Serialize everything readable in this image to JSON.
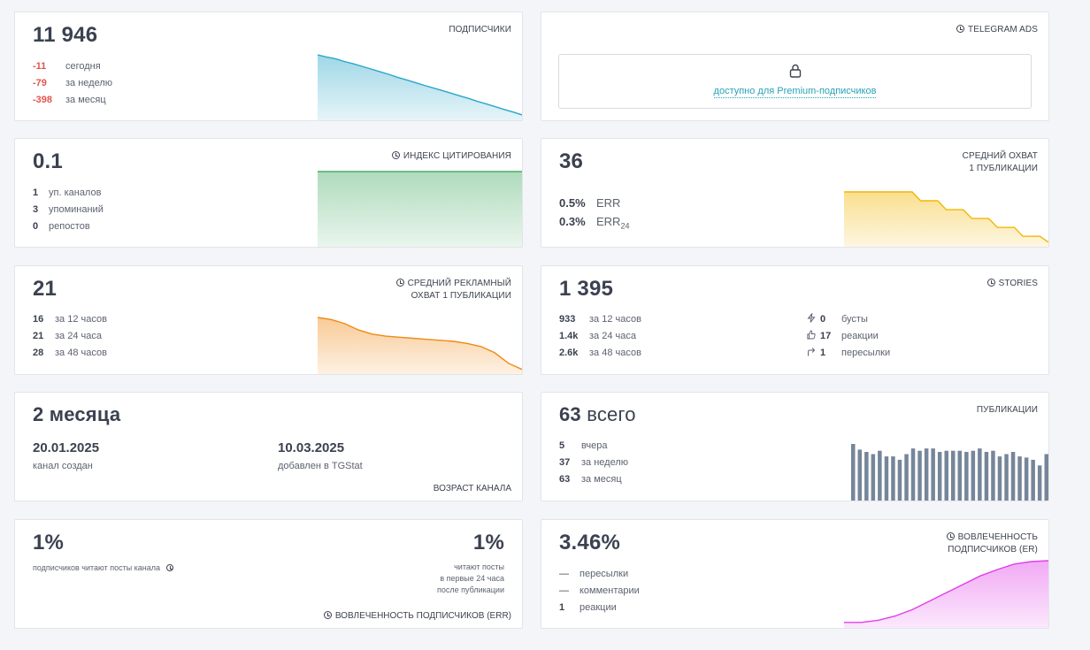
{
  "subscribers": {
    "value": "11 946",
    "label": "ПОДПИСЧИКИ",
    "stats": [
      {
        "value": "-11",
        "text": "сегодня"
      },
      {
        "value": "-79",
        "text": "за неделю"
      },
      {
        "value": "-398",
        "text": "за месяц"
      }
    ],
    "color": "#2aa7c9"
  },
  "telegram_ads": {
    "label": "TELEGRAM ADS",
    "lock_icon": "lock-icon",
    "premium_text": "доступно для Premium-подписчиков"
  },
  "citation": {
    "value": "0.1",
    "label": "ИНДЕКС ЦИТИРОВАНИЯ",
    "stats": [
      {
        "value": "1",
        "text": "уп. каналов"
      },
      {
        "value": "3",
        "text": "упоминаний"
      },
      {
        "value": "0",
        "text": "репостов"
      }
    ],
    "color": "#4caf6a"
  },
  "avg_reach": {
    "value": "36",
    "label_line1": "СРЕДНИЙ ОХВАТ",
    "label_line2": "1 ПУБЛИКАЦИИ",
    "err": {
      "value": "0.5%",
      "text": "ERR"
    },
    "err24": {
      "value": "0.3%",
      "text": "ERR",
      "sub": "24"
    },
    "color": "#f2b705"
  },
  "ad_reach": {
    "value": "21",
    "label_line1": "СРЕДНИЙ РЕКЛАМНЫЙ",
    "label_line2": "ОХВАТ 1 ПУБЛИКАЦИИ",
    "stats": [
      {
        "value": "16",
        "text": "за 12 часов"
      },
      {
        "value": "21",
        "text": "за 24 часа"
      },
      {
        "value": "28",
        "text": "за 48 часов"
      }
    ],
    "color": "#f08a15"
  },
  "stories": {
    "value": "1 395",
    "label": "STORIES",
    "stats": [
      {
        "value": "933",
        "text": "за 12 часов"
      },
      {
        "value": "1.4k",
        "text": "за 24 часа"
      },
      {
        "value": "2.6k",
        "text": "за 48 часов"
      }
    ],
    "extra": [
      {
        "icon": "bolt-icon",
        "value": "0",
        "text": "бусты"
      },
      {
        "icon": "thumbs-up-icon",
        "value": "17",
        "text": "реакции"
      },
      {
        "icon": "forward-icon",
        "value": "1",
        "text": "пересылки"
      }
    ]
  },
  "age": {
    "value": "2 месяца",
    "created_date": "20.01.2025",
    "created_text": "канал создан",
    "added_date": "10.03.2025",
    "added_text": "добавлен в TGStat",
    "label": "ВОЗРАСТ КАНАЛА"
  },
  "publications": {
    "value_num": "63",
    "value_text": "всего",
    "label": "ПУБЛИКАЦИИ",
    "stats": [
      {
        "value": "5",
        "text": "вчера"
      },
      {
        "value": "37",
        "text": "за неделю"
      },
      {
        "value": "63",
        "text": "за месяц"
      }
    ],
    "color": "#76869a"
  },
  "err_card": {
    "left_value": "1%",
    "left_text": "подписчиков читают посты канала",
    "right_value": "1%",
    "right_line1": "читают посты",
    "right_line2": "в первые 24 часа",
    "right_line3": "после публикации",
    "label": "ВОВЛЕЧЕННОСТЬ ПОДПИСЧИКОВ (ERR)"
  },
  "er_card": {
    "value": "3.46%",
    "label_line1": "ВОВЛЕЧЕННОСТЬ",
    "label_line2": "ПОДПИСЧИКОВ (ER)",
    "stats": [
      {
        "value": "—",
        "text": "пересылки"
      },
      {
        "value": "—",
        "text": "комментарии"
      },
      {
        "value": "1",
        "text": "реакции"
      }
    ],
    "color": "#e040e8"
  },
  "chart_data": [
    {
      "type": "area",
      "name_ref": "subscribers",
      "y": [
        12344,
        12330,
        12318,
        12300,
        12285,
        12268,
        12250,
        12232,
        12215,
        12195,
        12178,
        12160,
        12142,
        12125,
        12108,
        12090,
        12072,
        12055,
        12035,
        12018,
        12000,
        11982,
        11965,
        11946
      ]
    },
    {
      "type": "area",
      "name_ref": "citation",
      "y": [
        0.1,
        0.1,
        0.1,
        0.1,
        0.1,
        0.1,
        0.1,
        0.1,
        0.1,
        0.1
      ]
    },
    {
      "type": "area",
      "name_ref": "avg_reach",
      "y": [
        62,
        62,
        62,
        62,
        62,
        62,
        62,
        62,
        62,
        56,
        56,
        56,
        50,
        50,
        50,
        44,
        44,
        44,
        38,
        38,
        38,
        32,
        32,
        32,
        28
      ]
    },
    {
      "type": "area",
      "name_ref": "ad_reach",
      "y": [
        72,
        70,
        66,
        60,
        56,
        54,
        53,
        52,
        51,
        50,
        49,
        47,
        44,
        38,
        28,
        22
      ]
    },
    {
      "type": "bar",
      "name_ref": "publications",
      "values": [
        5,
        4.5,
        4.3,
        4.1,
        4.4,
        3.9,
        3.9,
        3.6,
        4.1,
        4.6,
        4.4,
        4.6,
        4.6,
        4.3,
        4.4,
        4.4,
        4.4,
        4.3,
        4.4,
        4.6,
        4.3,
        4.4,
        3.9,
        4.1,
        4.3,
        3.9,
        3.8,
        3.6,
        3.1,
        4.1
      ]
    },
    {
      "type": "area",
      "name_ref": "er_card",
      "y": [
        2.0,
        2.0,
        2.05,
        2.15,
        2.3,
        2.5,
        2.7,
        2.9,
        3.1,
        3.25,
        3.38,
        3.44,
        3.46
      ]
    }
  ]
}
